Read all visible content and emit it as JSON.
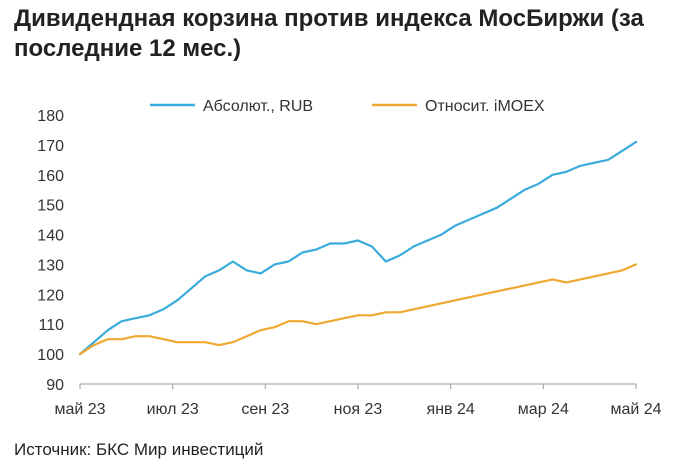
{
  "page": {
    "title": "Дивидендная корзина против индекса МосБиржи (за последние 12 мес.)",
    "source": "Источник: БКС Мир инвестиций"
  },
  "chart_data": {
    "type": "line",
    "title": "Дивидендная корзина против индекса МосБиржи (за последние 12 мес.)",
    "xlabel": "",
    "ylabel": "",
    "ylim": [
      90,
      180
    ],
    "yticks": [
      "90",
      "100",
      "110",
      "120",
      "130",
      "140",
      "150",
      "160",
      "170",
      "180"
    ],
    "xlim": [
      0,
      12
    ],
    "xticks": [
      "май 23",
      "июл 23",
      "сен 23",
      "ноя 23",
      "янв 24",
      "мар 24",
      "май 24"
    ],
    "xtick_positions": [
      0,
      2,
      4,
      6,
      8,
      10,
      12
    ],
    "legend_position": "top",
    "grid": false,
    "series": [
      {
        "name": "Абсолют., RUB",
        "color": "#3aabdb",
        "x": [
          0,
          0.3,
          0.6,
          0.9,
          1.2,
          1.5,
          1.8,
          2.1,
          2.4,
          2.7,
          3.0,
          3.3,
          3.6,
          3.9,
          4.2,
          4.5,
          4.8,
          5.1,
          5.4,
          5.7,
          6.0,
          6.3,
          6.6,
          6.9,
          7.2,
          7.5,
          7.8,
          8.1,
          8.4,
          8.7,
          9.0,
          9.3,
          9.6,
          9.9,
          10.2,
          10.5,
          10.8,
          11.1,
          11.4,
          11.7,
          12.0
        ],
        "values": [
          100,
          104,
          108,
          111,
          112,
          113,
          115,
          118,
          122,
          126,
          128,
          131,
          128,
          127,
          130,
          131,
          134,
          135,
          137,
          137,
          138,
          136,
          131,
          133,
          136,
          138,
          140,
          143,
          145,
          147,
          149,
          152,
          155,
          157,
          160,
          161,
          163,
          164,
          165,
          168,
          171
        ]
      },
      {
        "name": "Относит. iMOEX",
        "color": "#f0a830",
        "x": [
          0,
          0.3,
          0.6,
          0.9,
          1.2,
          1.5,
          1.8,
          2.1,
          2.4,
          2.7,
          3.0,
          3.3,
          3.6,
          3.9,
          4.2,
          4.5,
          4.8,
          5.1,
          5.4,
          5.7,
          6.0,
          6.3,
          6.6,
          6.9,
          7.2,
          7.5,
          7.8,
          8.1,
          8.4,
          8.7,
          9.0,
          9.3,
          9.6,
          9.9,
          10.2,
          10.5,
          10.8,
          11.1,
          11.4,
          11.7,
          12.0
        ],
        "values": [
          100,
          103,
          105,
          105,
          106,
          106,
          105,
          104,
          104,
          104,
          103,
          104,
          106,
          108,
          109,
          111,
          111,
          110,
          111,
          112,
          113,
          113,
          114,
          114,
          115,
          116,
          117,
          118,
          119,
          120,
          121,
          122,
          123,
          124,
          125,
          124,
          125,
          126,
          127,
          128,
          130
        ]
      }
    ]
  }
}
